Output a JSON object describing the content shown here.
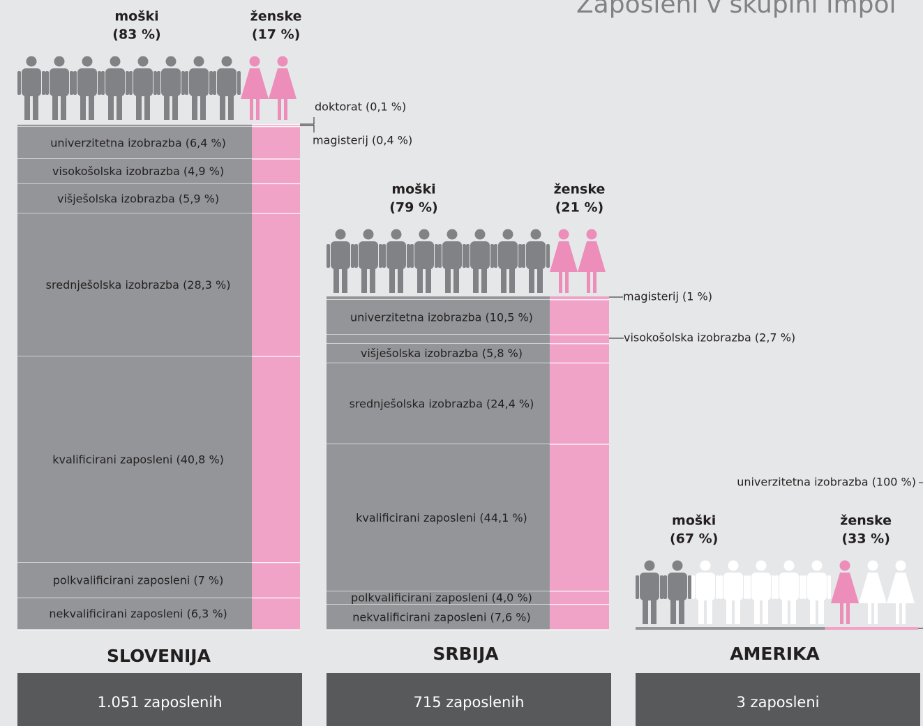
{
  "title": "Zaposleni v skupini Impol",
  "panels": [
    {
      "country": "SLOVENIJA",
      "employees": "1.051 zaposlenih",
      "male": {
        "label": "moški",
        "value_label": "(83 %)",
        "value": 83
      },
      "female": {
        "label": "ženske",
        "value_label": "(17 %)",
        "value": 17
      },
      "segments": [
        {
          "label": "doktorat (0,1 %)",
          "value": 0.1
        },
        {
          "label": "magisterij (0,4 %)",
          "value": 0.4
        },
        {
          "label": "univerzitetna izobrazba (6,4 %)",
          "value": 6.4
        },
        {
          "label": "visokošolska izobrazba (4,9 %)",
          "value": 4.9
        },
        {
          "label": "višješolska izobrazba (5,9 %)",
          "value": 5.9
        },
        {
          "label": "srednješolska izobrazba (28,3 %)",
          "value": 28.3
        },
        {
          "label": "kvalificirani zaposleni (40,8 %)",
          "value": 40.8
        },
        {
          "label": "polkvalificirani zaposleni (7 %)",
          "value": 7
        },
        {
          "label": "nekvalificirani zaposleni (6,3 %)",
          "value": 6.3
        }
      ]
    },
    {
      "country": "SRBIJA",
      "employees": "715 zaposlenih",
      "male": {
        "label": "moški",
        "value_label": "(79 %)",
        "value": 79
      },
      "female": {
        "label": "ženske",
        "value_label": "(21 %)",
        "value": 21
      },
      "segments": [
        {
          "label": "magisterij (1 %)",
          "value": 1
        },
        {
          "label": "univerzitetna izobrazba (10,5 %)",
          "value": 10.5
        },
        {
          "label": "visokošolska izobrazba (2,7 %)",
          "value": 2.7
        },
        {
          "label": "višješolska izobrazba (5,8 %)",
          "value": 5.8
        },
        {
          "label": "srednješolska izobrazba (24,4 %)",
          "value": 24.4
        },
        {
          "label": "kvalificirani zaposleni (44,1 %)",
          "value": 44.1
        },
        {
          "label": "polkvalificirani zaposleni (4,0 %)",
          "value": 4.0
        },
        {
          "label": "nekvalificirani zaposleni (7,6 %)",
          "value": 7.6
        }
      ]
    },
    {
      "country": "AMERIKA",
      "employees": "3 zaposleni",
      "male": {
        "label": "moški",
        "value_label": "(67 %)",
        "value": 67
      },
      "female": {
        "label": "ženske",
        "value_label": "(33 %)",
        "value": 33
      },
      "segments": [
        {
          "label": "univerzitetna izobrazba (100 %)",
          "value": 100
        }
      ]
    }
  ]
}
